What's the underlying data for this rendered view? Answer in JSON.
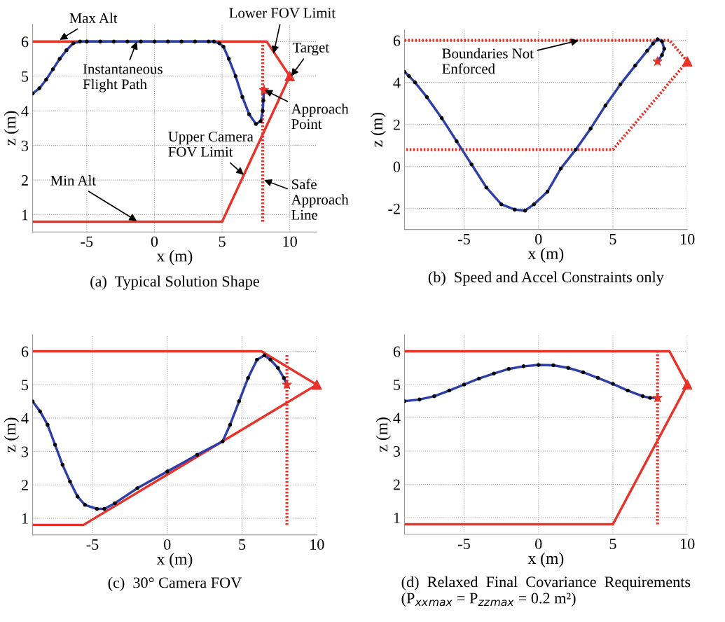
{
  "chart_data": [
    {
      "type": "line",
      "title": "(a)  Typical Solution Shape",
      "xlabel": "x (m)",
      "ylabel": "z (m)",
      "xlim": [
        -9,
        12
      ],
      "ylim": [
        0.5,
        6.5
      ],
      "xticks": [
        -5,
        0,
        5,
        10
      ],
      "yticks": [
        1,
        2,
        3,
        4,
        5,
        6
      ],
      "grid": true,
      "annotations": [
        {
          "text": "Max Alt",
          "x": -7,
          "y": 6.05
        },
        {
          "text": "Instantaneous\nFlight Path",
          "x": -1.3,
          "y": 6.0
        },
        {
          "text": "Lower FOV Limit",
          "x": 8.8,
          "y": 5.65
        },
        {
          "text": "Target",
          "x": 10.1,
          "y": 5.0
        },
        {
          "text": "Approach\nPoint",
          "x": 8.15,
          "y": 4.6
        },
        {
          "text": "Upper Camera\nFOV Limit",
          "x": 6.6,
          "y": 2.15
        },
        {
          "text": "Min Alt",
          "x": -1.3,
          "y": 0.82
        },
        {
          "text": "Safe\nApproach\nLine",
          "x": 8.1,
          "y": 2.0
        }
      ],
      "series": [
        {
          "type": "line",
          "color": "#e8332a",
          "line_style": "solid",
          "marker": "none",
          "x": [
            -9,
            8.3,
            10,
            5,
            -9
          ],
          "values": [
            6,
            6,
            5,
            0.8,
            0.8
          ]
        },
        {
          "type": "line",
          "color": "#e8332a",
          "line_style": "dotted",
          "marker": "none",
          "x": [
            8,
            8
          ],
          "values": [
            0.8,
            6
          ]
        },
        {
          "type": "line",
          "color": "#2e3fa8",
          "line_style": "solid",
          "marker": "circle",
          "x": [
            -9,
            -8.5,
            -8,
            -7.5,
            -7,
            -6.5,
            -6,
            -5.5,
            -5,
            -4,
            -3,
            -2,
            -1,
            0,
            1,
            2,
            3,
            4,
            4.4,
            4.8,
            5.1,
            5.5,
            6,
            6.5,
            7,
            7.5,
            7.85,
            8.0,
            8.05,
            8.1
          ],
          "values": [
            4.5,
            4.65,
            4.9,
            5.2,
            5.5,
            5.75,
            5.95,
            6.0,
            6.0,
            6,
            6,
            6,
            6,
            6,
            6,
            6,
            6,
            6,
            6,
            5.95,
            5.85,
            5.5,
            5.0,
            4.4,
            3.9,
            3.62,
            3.7,
            4.0,
            4.3,
            4.6
          ]
        },
        {
          "type": "scatter",
          "color": "#e8332a",
          "marker": "triangle",
          "x": [
            10
          ],
          "values": [
            5
          ]
        },
        {
          "type": "scatter",
          "color": "#e8332a",
          "marker": "star",
          "x": [
            8.1
          ],
          "values": [
            4.6
          ]
        }
      ]
    },
    {
      "type": "line",
      "title": "(b)  Speed and Accel Constraints only",
      "xlabel": "x (m)",
      "ylabel": "z (m)",
      "xlim": [
        -9,
        10
      ],
      "ylim": [
        -3,
        6.5
      ],
      "xticks": [
        -5,
        0,
        5,
        10
      ],
      "yticks": [
        -2,
        0,
        2,
        4,
        6
      ],
      "grid": true,
      "annotations": [
        {
          "text": "Boundaries Not\nEnforced",
          "x": 2.7,
          "y": 6.0
        }
      ],
      "series": [
        {
          "type": "line",
          "color": "#e8332a",
          "line_style": "dotted",
          "marker": "none",
          "x": [
            -9,
            8.8,
            10,
            5,
            -9
          ],
          "values": [
            6,
            6,
            5,
            0.8,
            0.8
          ]
        },
        {
          "type": "line",
          "color": "#2e3fa8",
          "line_style": "solid",
          "marker": "circle",
          "x": [
            -9,
            -8.7,
            -8.3,
            -7.5,
            -6.5,
            -5.5,
            -4.5,
            -3.5,
            -2.5,
            -1.6,
            -0.9,
            -0.3,
            0.6,
            1.5,
            2.5,
            3.5,
            4.5,
            5.5,
            6.5,
            7.3,
            7.7,
            8.0,
            8.3,
            8.45,
            8.3,
            8.0
          ],
          "values": [
            4.5,
            4.3,
            4.0,
            3.3,
            2.3,
            1.2,
            0.1,
            -1,
            -1.8,
            -2.05,
            -2.1,
            -1.8,
            -1.2,
            -0.1,
            0.8,
            1.8,
            2.9,
            3.9,
            4.8,
            5.5,
            5.85,
            6.05,
            5.95,
            5.6,
            5.3,
            5.0
          ]
        },
        {
          "type": "scatter",
          "color": "#e8332a",
          "marker": "triangle",
          "x": [
            10
          ],
          "values": [
            5
          ]
        },
        {
          "type": "scatter",
          "color": "#e8332a",
          "marker": "star",
          "x": [
            8
          ],
          "values": [
            5
          ]
        }
      ]
    },
    {
      "type": "line",
      "title": "(c)  30° Camera FOV",
      "xlabel": "x (m)",
      "ylabel": "z (m)",
      "xlim": [
        -9,
        10
      ],
      "ylim": [
        0.5,
        6.5
      ],
      "xticks": [
        -5,
        0,
        5,
        10
      ],
      "yticks": [
        1,
        2,
        3,
        4,
        5,
        6
      ],
      "grid": true,
      "series": [
        {
          "type": "line",
          "color": "#e8332a",
          "line_style": "solid",
          "marker": "none",
          "x": [
            -9,
            6.3,
            10,
            -5.6,
            -9
          ],
          "values": [
            6,
            6,
            5,
            0.8,
            0.8
          ]
        },
        {
          "type": "line",
          "color": "#e8332a",
          "line_style": "dotted",
          "marker": "none",
          "x": [
            8,
            8
          ],
          "values": [
            0.8,
            5.9
          ]
        },
        {
          "type": "line",
          "color": "#2e3fa8",
          "line_style": "solid",
          "marker": "circle",
          "x": [
            -9,
            -8.5,
            -8,
            -7.5,
            -7,
            -6.5,
            -6,
            -5.5,
            -4.7,
            -4.2,
            -3.5,
            -2,
            0,
            2,
            3.7,
            4.2,
            4.8,
            5.4,
            6,
            6.5,
            6.9,
            7.4,
            7.8,
            8
          ],
          "values": [
            4.5,
            4.2,
            3.8,
            3.2,
            2.6,
            2.1,
            1.65,
            1.4,
            1.28,
            1.28,
            1.45,
            1.9,
            2.4,
            2.9,
            3.3,
            3.8,
            4.5,
            5.2,
            5.75,
            5.88,
            5.75,
            5.5,
            5.2,
            5.0
          ]
        },
        {
          "type": "scatter",
          "color": "#e8332a",
          "marker": "triangle",
          "x": [
            10
          ],
          "values": [
            5
          ]
        },
        {
          "type": "scatter",
          "color": "#e8332a",
          "marker": "star",
          "x": [
            8
          ],
          "values": [
            5
          ]
        }
      ]
    },
    {
      "type": "line",
      "title": "(d)  Relaxed  Final  Covariance  Requirements\n(P$_{xx}$$_{max}$ = P$_{zz}$$_{max}$ = 0.2 m²)",
      "xlabel": "x (m)",
      "ylabel": "z (m)",
      "xlim": [
        -9,
        10
      ],
      "ylim": [
        0.5,
        6.5
      ],
      "xticks": [
        -5,
        0,
        5,
        10
      ],
      "yticks": [
        1,
        2,
        3,
        4,
        5,
        6
      ],
      "grid": true,
      "series": [
        {
          "type": "line",
          "color": "#e8332a",
          "line_style": "solid",
          "marker": "none",
          "x": [
            -9,
            8.8,
            10,
            5,
            -9
          ],
          "values": [
            6,
            6,
            5,
            0.8,
            0.8
          ]
        },
        {
          "type": "line",
          "color": "#e8332a",
          "line_style": "dotted",
          "marker": "none",
          "x": [
            8,
            8
          ],
          "values": [
            0.8,
            6
          ]
        },
        {
          "type": "line",
          "color": "#2e3fa8",
          "line_style": "solid",
          "marker": "circle",
          "x": [
            -9,
            -8,
            -7,
            -6,
            -5,
            -4,
            -3,
            -2,
            -1,
            0,
            1,
            2,
            3,
            4,
            5,
            6,
            7,
            7.5,
            8
          ],
          "values": [
            4.5,
            4.55,
            4.65,
            4.82,
            5.0,
            5.18,
            5.33,
            5.47,
            5.55,
            5.59,
            5.58,
            5.5,
            5.37,
            5.2,
            5.02,
            4.82,
            4.65,
            4.6,
            4.6
          ]
        },
        {
          "type": "scatter",
          "color": "#e8332a",
          "marker": "triangle",
          "x": [
            10
          ],
          "values": [
            5
          ]
        },
        {
          "type": "scatter",
          "color": "#e8332a",
          "marker": "star",
          "x": [
            8
          ],
          "values": [
            4.6
          ]
        }
      ]
    }
  ]
}
